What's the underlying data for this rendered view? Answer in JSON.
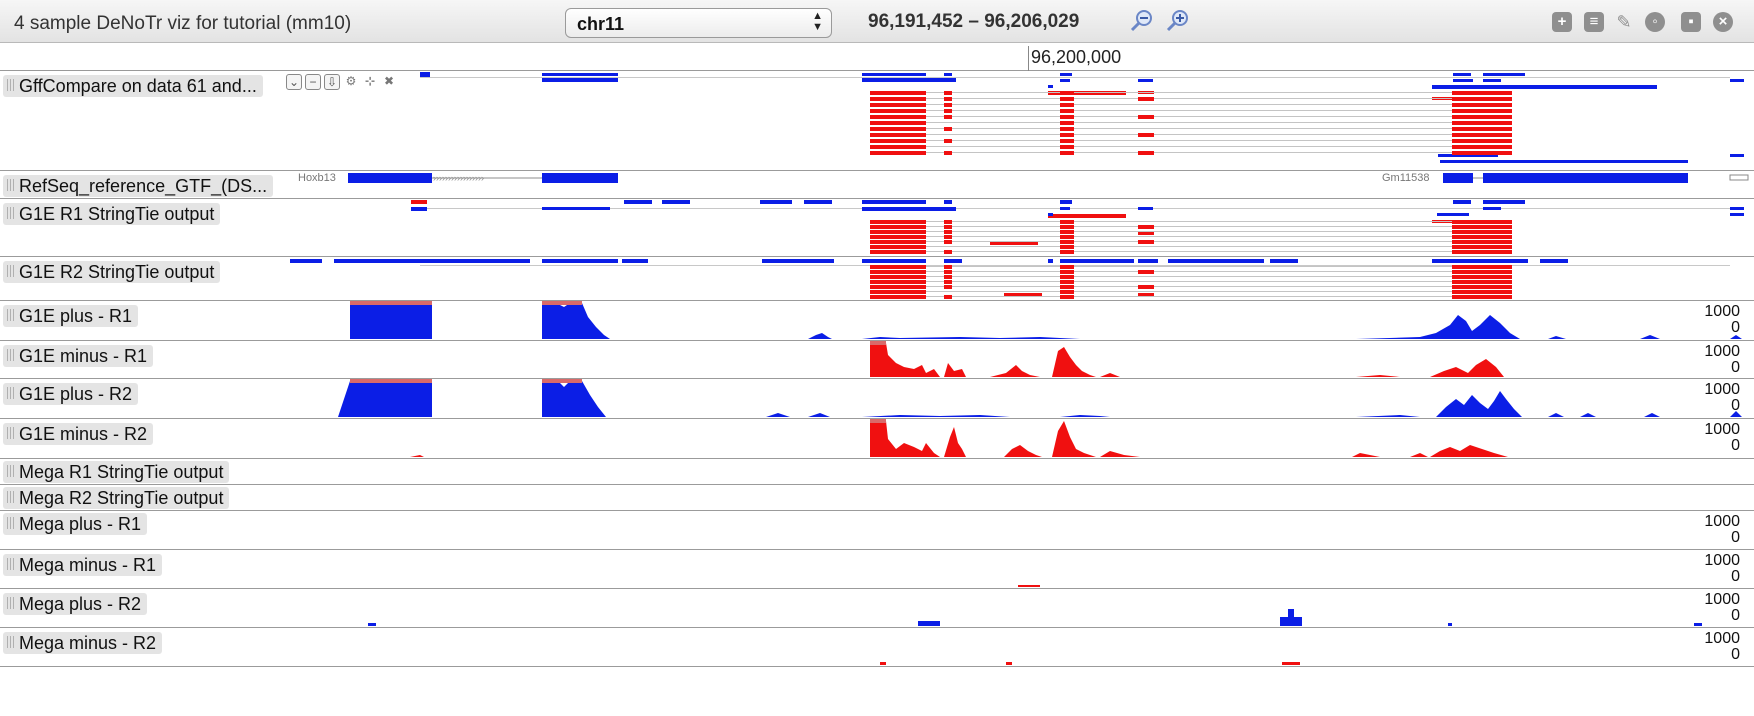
{
  "header": {
    "title": "4 sample DeNoTr viz for tutorial (mm10)",
    "chromosome": "chr11",
    "location": "96,191,452 – 96,206,029"
  },
  "ruler": {
    "label": "96,200,000"
  },
  "colors": {
    "plus": "#0b1ee6",
    "minus": "#f01010",
    "clip": "#d96a6a",
    "intron": "#b8b8b8"
  },
  "tracks": [
    {
      "name": "GffCompare on data 61 and..."
    },
    {
      "name": "RefSeq_reference_GTF_(DS...",
      "genes": [
        "Hoxb13",
        "Gm11538"
      ]
    },
    {
      "name": "G1E R1 StringTie output"
    },
    {
      "name": "G1E R2 StringTie output"
    },
    {
      "name": "G1E plus - R1",
      "max": "1000",
      "min": "0"
    },
    {
      "name": "G1E minus - R1",
      "max": "1000",
      "min": "0"
    },
    {
      "name": "G1E plus - R2",
      "max": "1000",
      "min": "0"
    },
    {
      "name": "G1E minus - R2",
      "max": "1000",
      "min": "0"
    },
    {
      "name": "Mega R1 StringTie output"
    },
    {
      "name": "Mega R2 StringTie output"
    },
    {
      "name": "Mega plus - R1",
      "max": "1000",
      "min": "0"
    },
    {
      "name": "Mega minus - R1",
      "max": "1000",
      "min": "0"
    },
    {
      "name": "Mega plus - R2",
      "max": "1000",
      "min": "0"
    },
    {
      "name": "Mega minus - R2",
      "max": "1000",
      "min": "0"
    }
  ]
}
